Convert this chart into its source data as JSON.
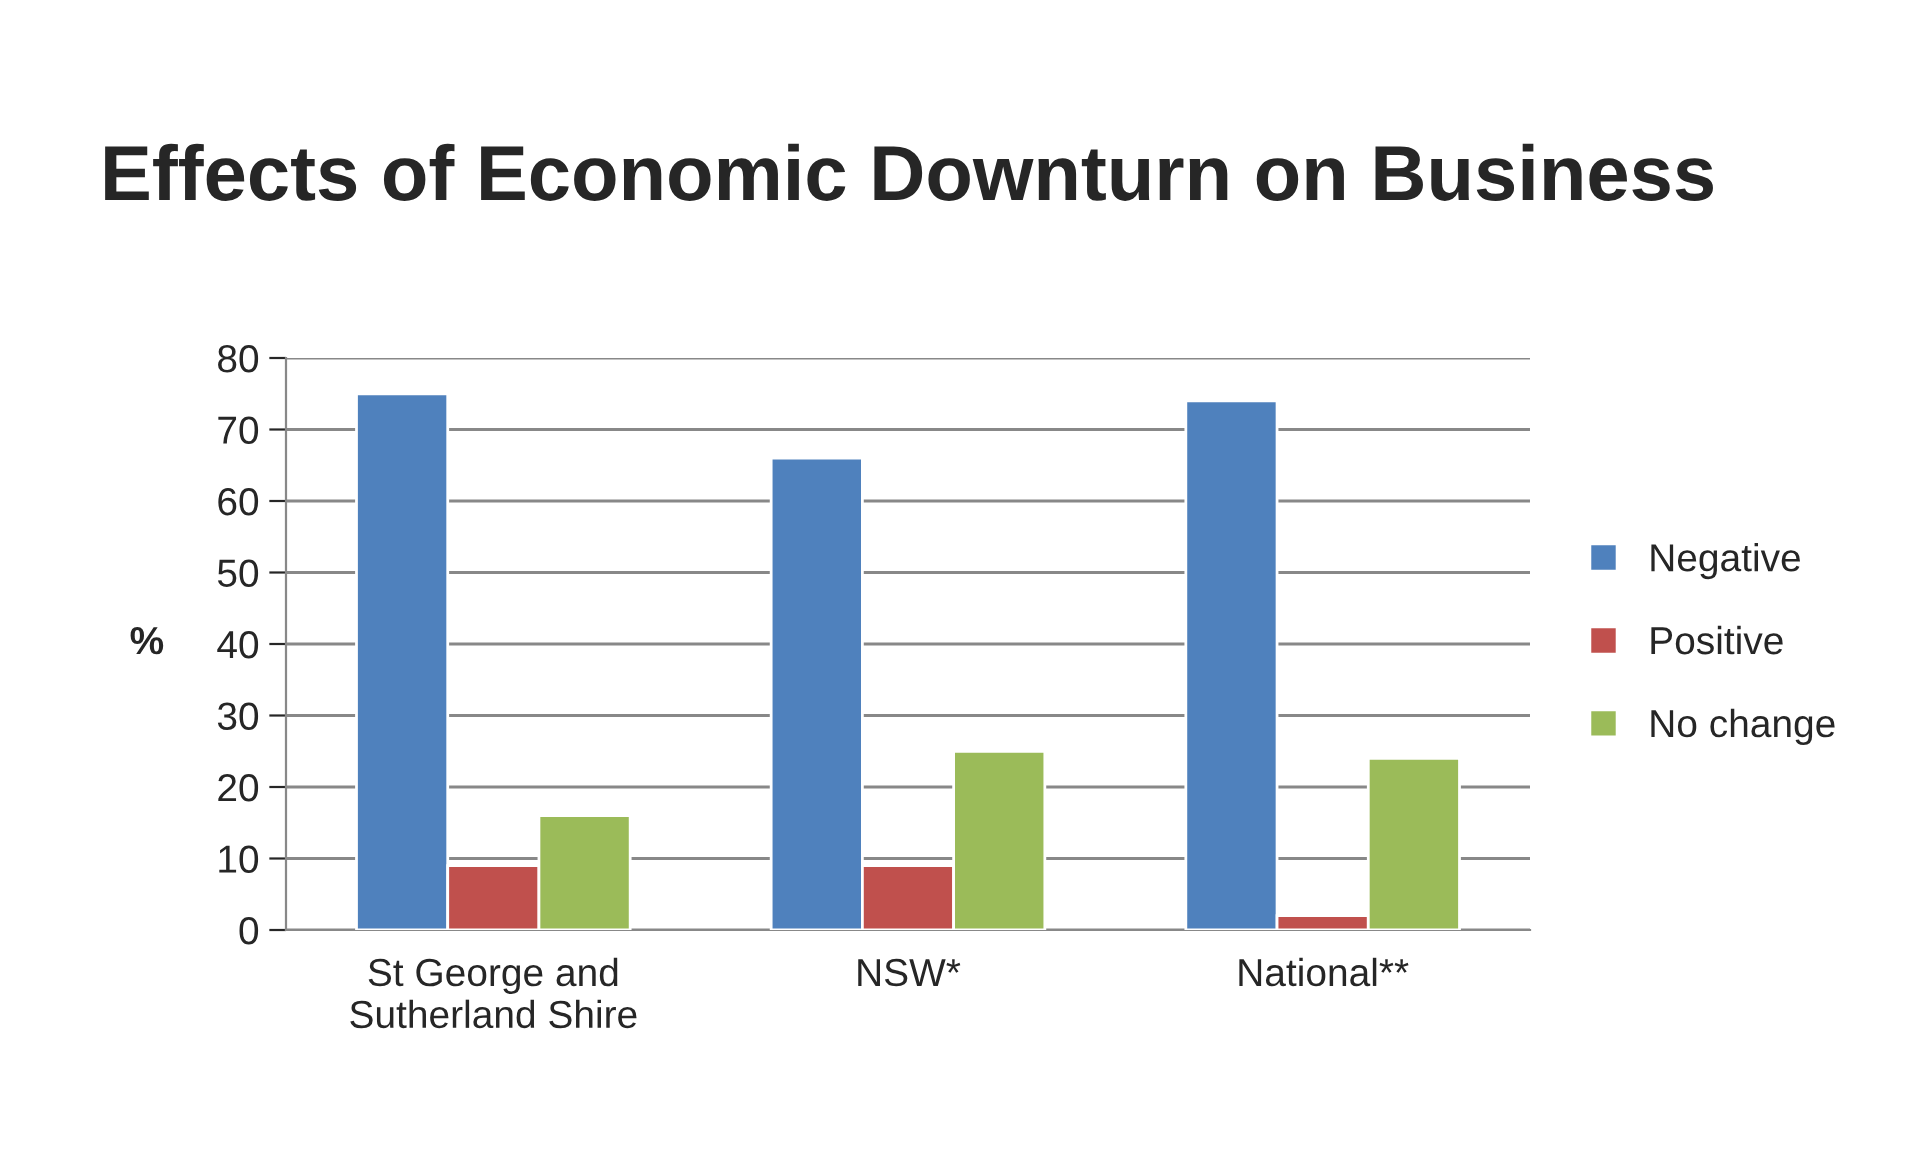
{
  "chart_data": {
    "type": "bar",
    "title": "Effects of Economic Downturn on Business",
    "ylabel": "%",
    "categories": [
      "St George and\nSutherland Shire",
      "NSW*",
      "National**"
    ],
    "series": [
      {
        "name": "Negative",
        "color": "#4f81bd",
        "values": [
          75,
          66,
          74
        ]
      },
      {
        "name": "Positive",
        "color": "#c0504d",
        "values": [
          9,
          9,
          2
        ]
      },
      {
        "name": "No change",
        "color": "#9bbb59",
        "values": [
          16,
          25,
          24
        ]
      }
    ],
    "ylim": [
      0,
      80
    ],
    "yticks": [
      0,
      10,
      20,
      30,
      40,
      50,
      60,
      70,
      80
    ],
    "grid": "y",
    "legend": "right"
  }
}
